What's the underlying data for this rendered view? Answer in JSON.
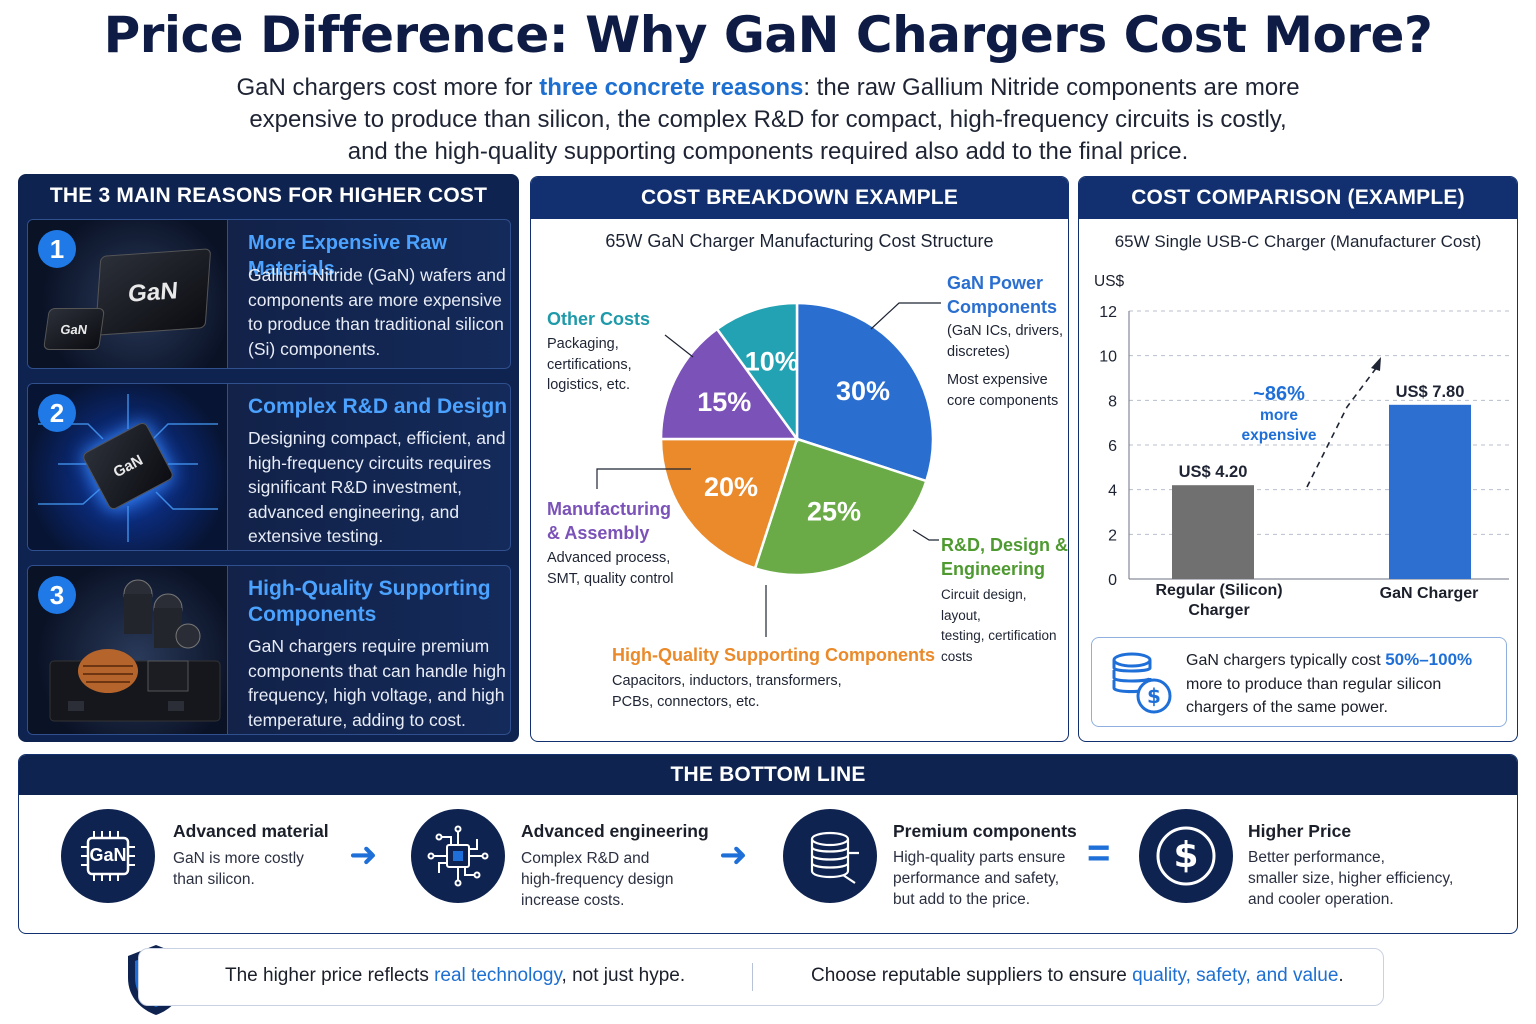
{
  "title": "Price Difference: Why GaN Chargers Cost More?",
  "intro": {
    "prefix": "GaN chargers cost more for ",
    "highlight": "three concrete reasons",
    "suffix_line1": ": the raw Gallium Nitride components are more",
    "line2": "expensive to produce than silicon, the complex R&D for compact, high-frequency circuits is costly,",
    "line3": "and the high-quality supporting components required also add to the final price."
  },
  "reasons_panel": {
    "header": "THE 3 MAIN REASONS FOR HIGHER COST",
    "items": [
      {
        "num": "1",
        "title": "More Expensive Raw Materials",
        "text": "Gallium Nitride (GaN) wafers and components are more expensive to produce than traditional silicon (Si) components.",
        "chip_big": "GaN",
        "chip_small": "GaN"
      },
      {
        "num": "2",
        "title": "Complex R&D and Design",
        "text": "Designing compact, efficient, and high-frequency circuits requires significant R&D investment, advanced engineering, and extensive testing.",
        "chip_label": "GaN"
      },
      {
        "num": "3",
        "title_line1": "High-Quality Supporting",
        "title_line2": "Components",
        "text": "GaN chargers require premium components that can handle high frequency, high voltage, and high temperature, adding to cost."
      }
    ]
  },
  "breakdown": {
    "header": "COST BREAKDOWN EXAMPLE",
    "subtitle": "65W GaN Charger Manufacturing Cost Structure",
    "labels": {
      "gan_title_1": "GaN Power",
      "gan_title_2": "Components",
      "gan_desc_1": "(GaN ICs, drivers,",
      "gan_desc_2": "discretes)",
      "gan_desc_3": "Most expensive",
      "gan_desc_4": "core components",
      "rd_title_1": "R&D, Design &",
      "rd_title_2": "Engineering",
      "rd_desc_1": "Circuit design, layout,",
      "rd_desc_2": "testing, certification",
      "rd_desc_3": "costs",
      "hq_title": "High-Quality Supporting Components",
      "hq_desc_1": "Capacitors, inductors, transformers,",
      "hq_desc_2": "PCBs, connectors, etc.",
      "mfg_title_1": "Manufacturing",
      "mfg_title_2": "& Assembly",
      "mfg_desc_1": "Advanced process,",
      "mfg_desc_2": "SMT, quality control",
      "other_title": "Other Costs",
      "other_desc_1": "Packaging,",
      "other_desc_2": "certifications,",
      "other_desc_3": "logistics, etc."
    }
  },
  "comparison": {
    "header": "COST COMPARISON (EXAMPLE)",
    "subtitle": "65W Single USB-C Charger (Manufacturer Cost)",
    "y_unit": "US$",
    "bar1_value_label": "US$ 4.20",
    "bar2_value_label": "US$ 7.80",
    "bar1_label_1": "Regular (Silicon)",
    "bar1_label_2": "Charger",
    "bar2_label": "GaN Charger",
    "diff_pct": "~86%",
    "diff_1": "more",
    "diff_2": "expensive",
    "note_prefix": "GaN chargers typically cost ",
    "note_highlight": "50%–100%",
    "note_line2": "more to produce than regular silicon",
    "note_line3": "chargers of the same power."
  },
  "chart_data": [
    {
      "type": "pie",
      "title": "65W GaN Charger Manufacturing Cost Structure",
      "categories": [
        "GaN Power Components",
        "R&D, Design & Engineering",
        "High-Quality Supporting Components",
        "Manufacturing & Assembly",
        "Other Costs"
      ],
      "values": [
        30,
        25,
        20,
        15,
        10
      ],
      "value_labels": [
        "30%",
        "25%",
        "20%",
        "15%",
        "10%"
      ],
      "colors": [
        "#2a6fd0",
        "#6aab48",
        "#ea8a2a",
        "#7b52b8",
        "#22a2b2"
      ]
    },
    {
      "type": "bar",
      "title": "65W Single USB-C Charger (Manufacturer Cost)",
      "categories": [
        "Regular (Silicon) Charger",
        "GaN Charger"
      ],
      "values": [
        4.2,
        7.8
      ],
      "ylabel": "US$",
      "ylim": [
        0,
        12
      ],
      "yticks": [
        0,
        2,
        4,
        6,
        8,
        10,
        12
      ],
      "grid": true,
      "colors": [
        "#707070",
        "#2d6fd0"
      ]
    }
  ],
  "bottom_line": {
    "header": "THE BOTTOM LINE",
    "items": [
      {
        "title": "Advanced material",
        "line1": "GaN is more costly",
        "line2": "than silicon.",
        "icon_text": "GaN"
      },
      {
        "title": "Advanced engineering",
        "line1": "Complex R&D and",
        "line2": "high-frequency design",
        "line3": "increase costs."
      },
      {
        "title": "Premium components",
        "line1": "High-quality parts ensure",
        "line2": "performance and safety,",
        "line3": "but add to the price."
      },
      {
        "title": "Higher Price",
        "line1": "Better performance,",
        "line2": "smaller size, higher efficiency,",
        "line3": "and cooler operation.",
        "icon_text": "$"
      }
    ],
    "arrow": "➜",
    "equals": "="
  },
  "footer": {
    "left_prefix": "The higher price reflects ",
    "left_highlight": "real technology",
    "left_suffix": ", not just hype.",
    "right_prefix": "Choose reputable suppliers to ensure ",
    "right_highlight": "quality, safety, and value",
    "right_suffix": "."
  }
}
